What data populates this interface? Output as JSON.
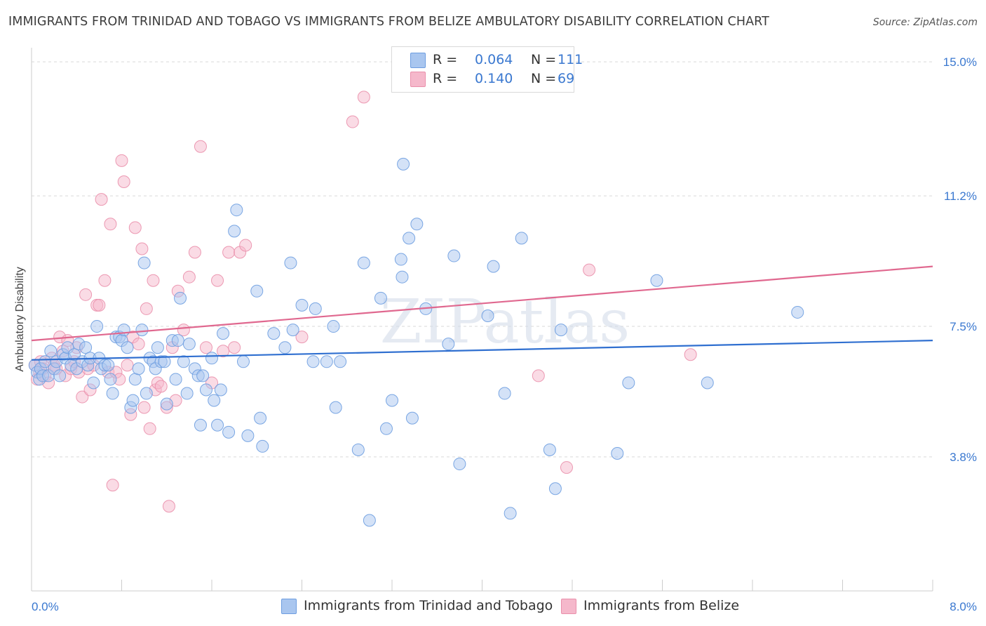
{
  "title": "IMMIGRANTS FROM TRINIDAD AND TOBAGO VS IMMIGRANTS FROM BELIZE AMBULATORY DISABILITY CORRELATION CHART",
  "source": "Source: ZipAtlas.com",
  "watermark": "ZIPatlas",
  "legend": {
    "rows": [
      {
        "r_label": "R =",
        "r_value": "0.064",
        "n_label": "N =",
        "n_value": "111"
      },
      {
        "r_label": "R =",
        "r_value": "0.140",
        "n_label": "N =",
        "n_value": "69"
      }
    ]
  },
  "colors": {
    "blue_fill": "#a9c6ef",
    "blue_stroke": "#6d9de0",
    "blue_line": "#2f6fd0",
    "pink_fill": "#f5b8cb",
    "pink_stroke": "#ea8fab",
    "pink_line": "#e0688f",
    "axis_label": "#3a78d0",
    "grid": "#d9d9d9"
  },
  "chart_data": {
    "type": "scatter",
    "title": "IMMIGRANTS FROM TRINIDAD AND TOBAGO VS IMMIGRANTS FROM BELIZE AMBULATORY DISABILITY CORRELATION CHART",
    "ylabel": "Ambulatory Disability",
    "xlabel": "",
    "xlim": [
      0.0,
      8.0
    ],
    "ylim": [
      0.0,
      15.4
    ],
    "x_tick_labels": [
      "0.0%",
      "8.0%"
    ],
    "y_ticks": [
      3.8,
      7.5,
      11.2,
      15.0
    ],
    "y_tick_labels": [
      "3.8%",
      "7.5%",
      "11.2%",
      "15.0%"
    ],
    "grid": "horizontal dashed",
    "legend_position": "top-center",
    "series": [
      {
        "name": "Immigrants from Trinidad and Tobago",
        "color": "blue",
        "R": 0.064,
        "N": 111,
        "trend": {
          "x": [
            0.0,
            8.0
          ],
          "y": [
            6.55,
            7.1
          ]
        },
        "points": [
          [
            0.03,
            6.4
          ],
          [
            0.05,
            6.2
          ],
          [
            0.07,
            6.0
          ],
          [
            0.08,
            6.3
          ],
          [
            0.1,
            6.1
          ],
          [
            0.12,
            6.5
          ],
          [
            0.15,
            6.1
          ],
          [
            0.17,
            6.8
          ],
          [
            0.2,
            6.3
          ],
          [
            0.22,
            6.5
          ],
          [
            0.25,
            6.1
          ],
          [
            0.28,
            6.7
          ],
          [
            0.3,
            6.6
          ],
          [
            0.32,
            6.9
          ],
          [
            0.35,
            6.4
          ],
          [
            0.38,
            6.7
          ],
          [
            0.4,
            6.3
          ],
          [
            0.42,
            7.0
          ],
          [
            0.45,
            6.5
          ],
          [
            0.48,
            6.9
          ],
          [
            0.5,
            6.4
          ],
          [
            0.52,
            6.6
          ],
          [
            0.55,
            5.9
          ],
          [
            0.58,
            7.5
          ],
          [
            0.6,
            6.6
          ],
          [
            0.62,
            6.3
          ],
          [
            0.65,
            6.4
          ],
          [
            0.68,
            6.4
          ],
          [
            0.7,
            6.0
          ],
          [
            0.72,
            5.6
          ],
          [
            0.75,
            7.2
          ],
          [
            0.78,
            7.2
          ],
          [
            0.8,
            7.1
          ],
          [
            0.82,
            7.4
          ],
          [
            0.85,
            6.9
          ],
          [
            0.88,
            5.2
          ],
          [
            0.9,
            5.4
          ],
          [
            0.92,
            6.0
          ],
          [
            0.95,
            6.3
          ],
          [
            0.98,
            7.4
          ],
          [
            1.0,
            9.3
          ],
          [
            1.02,
            5.6
          ],
          [
            1.05,
            6.6
          ],
          [
            1.08,
            6.5
          ],
          [
            1.1,
            6.3
          ],
          [
            1.12,
            6.9
          ],
          [
            1.15,
            6.5
          ],
          [
            1.18,
            6.5
          ],
          [
            1.2,
            5.3
          ],
          [
            1.25,
            7.1
          ],
          [
            1.28,
            6.0
          ],
          [
            1.3,
            7.1
          ],
          [
            1.32,
            8.3
          ],
          [
            1.35,
            6.5
          ],
          [
            1.38,
            5.6
          ],
          [
            1.4,
            7.0
          ],
          [
            1.45,
            6.3
          ],
          [
            1.48,
            6.1
          ],
          [
            1.5,
            4.7
          ],
          [
            1.52,
            6.1
          ],
          [
            1.55,
            5.7
          ],
          [
            1.6,
            6.6
          ],
          [
            1.62,
            5.4
          ],
          [
            1.65,
            4.7
          ],
          [
            1.68,
            5.7
          ],
          [
            1.7,
            7.3
          ],
          [
            1.75,
            4.5
          ],
          [
            1.8,
            10.2
          ],
          [
            1.82,
            10.8
          ],
          [
            1.88,
            6.5
          ],
          [
            1.92,
            4.4
          ],
          [
            2.0,
            8.5
          ],
          [
            2.03,
            4.9
          ],
          [
            2.05,
            4.1
          ],
          [
            2.15,
            7.3
          ],
          [
            2.25,
            6.9
          ],
          [
            2.3,
            9.3
          ],
          [
            2.32,
            7.4
          ],
          [
            2.4,
            8.1
          ],
          [
            2.5,
            6.5
          ],
          [
            2.52,
            8.0
          ],
          [
            2.62,
            6.5
          ],
          [
            2.68,
            7.5
          ],
          [
            2.7,
            5.2
          ],
          [
            2.74,
            6.5
          ],
          [
            2.9,
            4.0
          ],
          [
            2.95,
            9.3
          ],
          [
            3.0,
            2.0
          ],
          [
            3.1,
            8.3
          ],
          [
            3.15,
            4.6
          ],
          [
            3.2,
            5.4
          ],
          [
            3.28,
            9.4
          ],
          [
            3.29,
            8.9
          ],
          [
            3.3,
            12.1
          ],
          [
            3.35,
            10.0
          ],
          [
            3.38,
            4.9
          ],
          [
            3.42,
            10.4
          ],
          [
            3.5,
            8.0
          ],
          [
            3.7,
            7.0
          ],
          [
            3.75,
            9.5
          ],
          [
            3.8,
            3.6
          ],
          [
            4.05,
            7.8
          ],
          [
            4.1,
            9.2
          ],
          [
            4.2,
            5.6
          ],
          [
            4.25,
            2.2
          ],
          [
            4.35,
            10.0
          ],
          [
            4.6,
            4.0
          ],
          [
            4.65,
            2.9
          ],
          [
            4.7,
            7.4
          ],
          [
            5.2,
            3.9
          ],
          [
            5.3,
            5.9
          ],
          [
            5.55,
            8.8
          ],
          [
            6.0,
            5.9
          ],
          [
            6.8,
            7.9
          ]
        ]
      },
      {
        "name": "Immigrants from Belize",
        "color": "pink",
        "R": 0.14,
        "N": 69,
        "trend": {
          "x": [
            0.0,
            8.0
          ],
          "y": [
            7.1,
            9.2
          ]
        },
        "points": [
          [
            0.03,
            6.4
          ],
          [
            0.05,
            6.0
          ],
          [
            0.07,
            6.2
          ],
          [
            0.08,
            6.5
          ],
          [
            0.1,
            6.3
          ],
          [
            0.12,
            6.1
          ],
          [
            0.15,
            5.9
          ],
          [
            0.18,
            6.6
          ],
          [
            0.2,
            6.4
          ],
          [
            0.22,
            6.3
          ],
          [
            0.25,
            7.2
          ],
          [
            0.28,
            6.8
          ],
          [
            0.3,
            6.1
          ],
          [
            0.32,
            7.1
          ],
          [
            0.35,
            6.3
          ],
          [
            0.38,
            6.5
          ],
          [
            0.4,
            6.9
          ],
          [
            0.42,
            6.2
          ],
          [
            0.45,
            5.5
          ],
          [
            0.48,
            8.4
          ],
          [
            0.5,
            6.3
          ],
          [
            0.52,
            5.7
          ],
          [
            0.55,
            6.4
          ],
          [
            0.58,
            8.1
          ],
          [
            0.6,
            8.1
          ],
          [
            0.62,
            11.1
          ],
          [
            0.65,
            8.8
          ],
          [
            0.68,
            6.2
          ],
          [
            0.7,
            10.4
          ],
          [
            0.72,
            3.0
          ],
          [
            0.75,
            6.2
          ],
          [
            0.78,
            6.0
          ],
          [
            0.8,
            12.2
          ],
          [
            0.82,
            11.6
          ],
          [
            0.85,
            6.4
          ],
          [
            0.88,
            5.0
          ],
          [
            0.9,
            7.2
          ],
          [
            0.92,
            10.3
          ],
          [
            0.95,
            7.0
          ],
          [
            0.98,
            9.7
          ],
          [
            1.0,
            5.2
          ],
          [
            1.02,
            8.0
          ],
          [
            1.05,
            4.6
          ],
          [
            1.08,
            8.8
          ],
          [
            1.1,
            5.7
          ],
          [
            1.12,
            5.9
          ],
          [
            1.15,
            5.8
          ],
          [
            1.2,
            5.2
          ],
          [
            1.22,
            2.4
          ],
          [
            1.25,
            6.9
          ],
          [
            1.28,
            5.4
          ],
          [
            1.3,
            8.5
          ],
          [
            1.35,
            7.4
          ],
          [
            1.4,
            8.9
          ],
          [
            1.45,
            9.6
          ],
          [
            1.5,
            12.6
          ],
          [
            1.55,
            6.9
          ],
          [
            1.6,
            5.9
          ],
          [
            1.65,
            8.8
          ],
          [
            1.7,
            6.8
          ],
          [
            1.75,
            9.6
          ],
          [
            1.8,
            6.9
          ],
          [
            1.85,
            9.6
          ],
          [
            1.9,
            9.8
          ],
          [
            2.4,
            7.2
          ],
          [
            2.85,
            13.3
          ],
          [
            2.95,
            14.0
          ],
          [
            4.5,
            6.1
          ],
          [
            4.75,
            3.5
          ],
          [
            4.95,
            9.1
          ],
          [
            5.85,
            6.7
          ]
        ]
      }
    ]
  },
  "bottom_legend": [
    {
      "label": "Immigrants from Trinidad and Tobago"
    },
    {
      "label": "Immigrants from Belize"
    }
  ]
}
